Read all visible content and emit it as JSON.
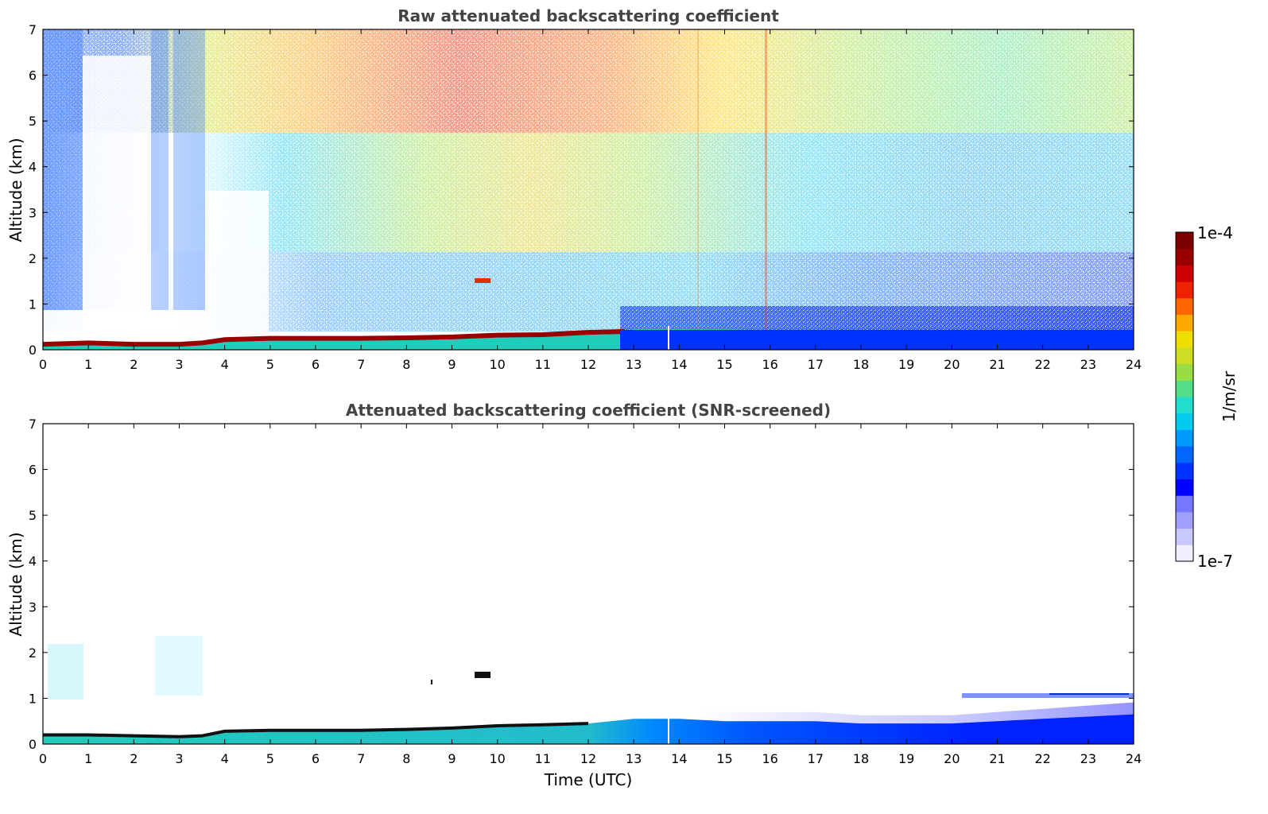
{
  "chart_data": [
    {
      "type": "heatmap",
      "title": "Raw attenuated backscattering coefficient",
      "xlabel": "",
      "ylabel": "Altitude (km)",
      "xlim": [
        0,
        24
      ],
      "ylim": [
        0,
        7
      ],
      "xticks": [
        "0",
        "1",
        "2",
        "3",
        "4",
        "5",
        "6",
        "7",
        "8",
        "9",
        "10",
        "11",
        "12",
        "13",
        "14",
        "15",
        "16",
        "17",
        "18",
        "19",
        "20",
        "21",
        "22",
        "23",
        "24"
      ],
      "yticks": [
        "0",
        "1",
        "2",
        "3",
        "4",
        "5",
        "6",
        "7"
      ],
      "features": {
        "boundary_layer_top_km": [
          [
            0,
            0.12
          ],
          [
            1,
            0.15
          ],
          [
            2,
            0.12
          ],
          [
            3,
            0.12
          ],
          [
            3.5,
            0.15
          ],
          [
            4,
            0.22
          ],
          [
            5,
            0.25
          ],
          [
            6,
            0.25
          ],
          [
            7,
            0.25
          ],
          [
            8,
            0.26
          ],
          [
            9,
            0.28
          ],
          [
            10,
            0.32
          ],
          [
            11,
            0.33
          ],
          [
            12,
            0.38
          ],
          [
            12.8,
            0.4
          ],
          [
            13,
            0.45
          ],
          [
            14,
            0.45
          ],
          [
            15,
            0.45
          ],
          [
            16,
            0.42
          ],
          [
            17,
            0.4
          ],
          [
            18,
            0.38
          ],
          [
            19,
            0.38
          ],
          [
            20,
            0.38
          ],
          [
            21,
            0.36
          ],
          [
            22,
            0.36
          ],
          [
            23,
            0.36
          ],
          [
            24,
            0.38
          ]
        ],
        "high_noise_band_hours": [
          6,
          16
        ],
        "clear_gaps_hours": [
          [
            0.85,
            1.9
          ],
          [
            3.55,
            5.0
          ]
        ]
      }
    },
    {
      "type": "heatmap",
      "title": "Attenuated backscattering coefficient (SNR-screened)",
      "xlabel": "Time (UTC)",
      "ylabel": "Altitude (km)",
      "xlim": [
        0,
        24
      ],
      "ylim": [
        0,
        7
      ],
      "xticks": [
        "0",
        "1",
        "2",
        "3",
        "4",
        "5",
        "6",
        "7",
        "8",
        "9",
        "10",
        "11",
        "12",
        "13",
        "14",
        "15",
        "16",
        "17",
        "18",
        "19",
        "20",
        "21",
        "22",
        "23",
        "24"
      ],
      "yticks": [
        "0",
        "1",
        "2",
        "3",
        "4",
        "5",
        "6",
        "7"
      ],
      "features": {
        "aerosol_layer_top_km": [
          [
            0,
            0.2
          ],
          [
            1,
            0.2
          ],
          [
            2,
            0.18
          ],
          [
            3,
            0.16
          ],
          [
            3.5,
            0.18
          ],
          [
            4,
            0.28
          ],
          [
            5,
            0.3
          ],
          [
            6,
            0.3
          ],
          [
            7,
            0.3
          ],
          [
            8,
            0.32
          ],
          [
            9,
            0.35
          ],
          [
            10,
            0.4
          ],
          [
            11,
            0.42
          ],
          [
            12,
            0.45
          ],
          [
            13,
            0.55
          ],
          [
            14,
            0.55
          ],
          [
            15,
            0.5
          ],
          [
            16,
            0.5
          ],
          [
            17,
            0.5
          ],
          [
            18,
            0.45
          ],
          [
            19,
            0.45
          ],
          [
            20,
            0.45
          ],
          [
            21,
            0.5
          ],
          [
            22,
            0.55
          ],
          [
            23,
            0.6
          ],
          [
            24,
            0.65
          ]
        ],
        "cloud_patch": {
          "time_hours": [
            9.5,
            9.8
          ],
          "altitude_km": 1.5
        }
      }
    }
  ],
  "colorbar": {
    "max_label": "1e-4",
    "min_label": "1e-7",
    "label": "1/m/sr",
    "colors": [
      "#eeeeff",
      "#c8c8ff",
      "#9f9fff",
      "#7777ff",
      "#0000ff",
      "#0033ff",
      "#0066ff",
      "#0099ff",
      "#00ccee",
      "#22ddcc",
      "#55dd88",
      "#99dd44",
      "#ccdd22",
      "#eedd00",
      "#ffaa00",
      "#ff6600",
      "#ee2200",
      "#cc0000",
      "#990000",
      "#7a0000"
    ]
  }
}
